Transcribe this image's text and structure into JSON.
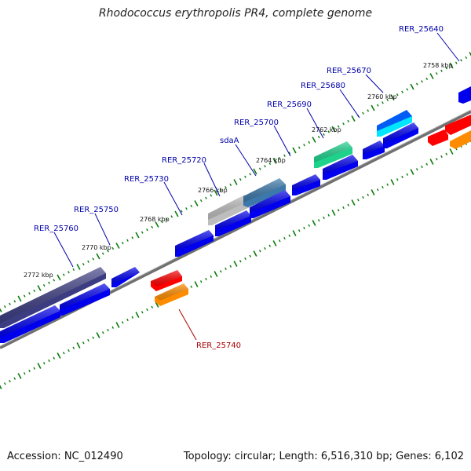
{
  "title": "Rhodococcus erythropolis PR4, complete genome",
  "footer": {
    "accession": "Accession: NC_012490",
    "topology": "Topology: circular; Length: 6,516,310 bp; Genes: 6,102"
  },
  "colors": {
    "backbone": "#808080",
    "cds_forward": "#0000ee",
    "cds_highlight_navy": "#3c3c82",
    "cds_grey": "#bdbdbd",
    "cds_steel": "#3c78aa",
    "cds_green": "#1ed28c",
    "cds_cyan": "#00e6ff",
    "cds_red": "#ff0000",
    "cds_orange": "#ff8c00",
    "tick": "#0a7a0a",
    "label_blue": "#0000aa",
    "label_red": "#aa0000"
  },
  "kbp_labels": [
    "2758 kbp",
    "2760 kbp",
    "2762 kbp",
    "2764 kbp",
    "2766 kbp",
    "2768 kbp",
    "2770 kbp",
    "2772 kbp"
  ],
  "gene_labels": {
    "rer25640": "RER_25640",
    "rer25670": "RER_25670",
    "rer25680": "RER_25680",
    "rer25690": "RER_25690",
    "rer25700": "RER_25700",
    "sdaA": "sdaA",
    "rer25720": "RER_25720",
    "rer25730": "RER_25730",
    "rer25750": "RER_25750",
    "rer25760": "RER_25760",
    "rer25740": "RER_25740"
  }
}
